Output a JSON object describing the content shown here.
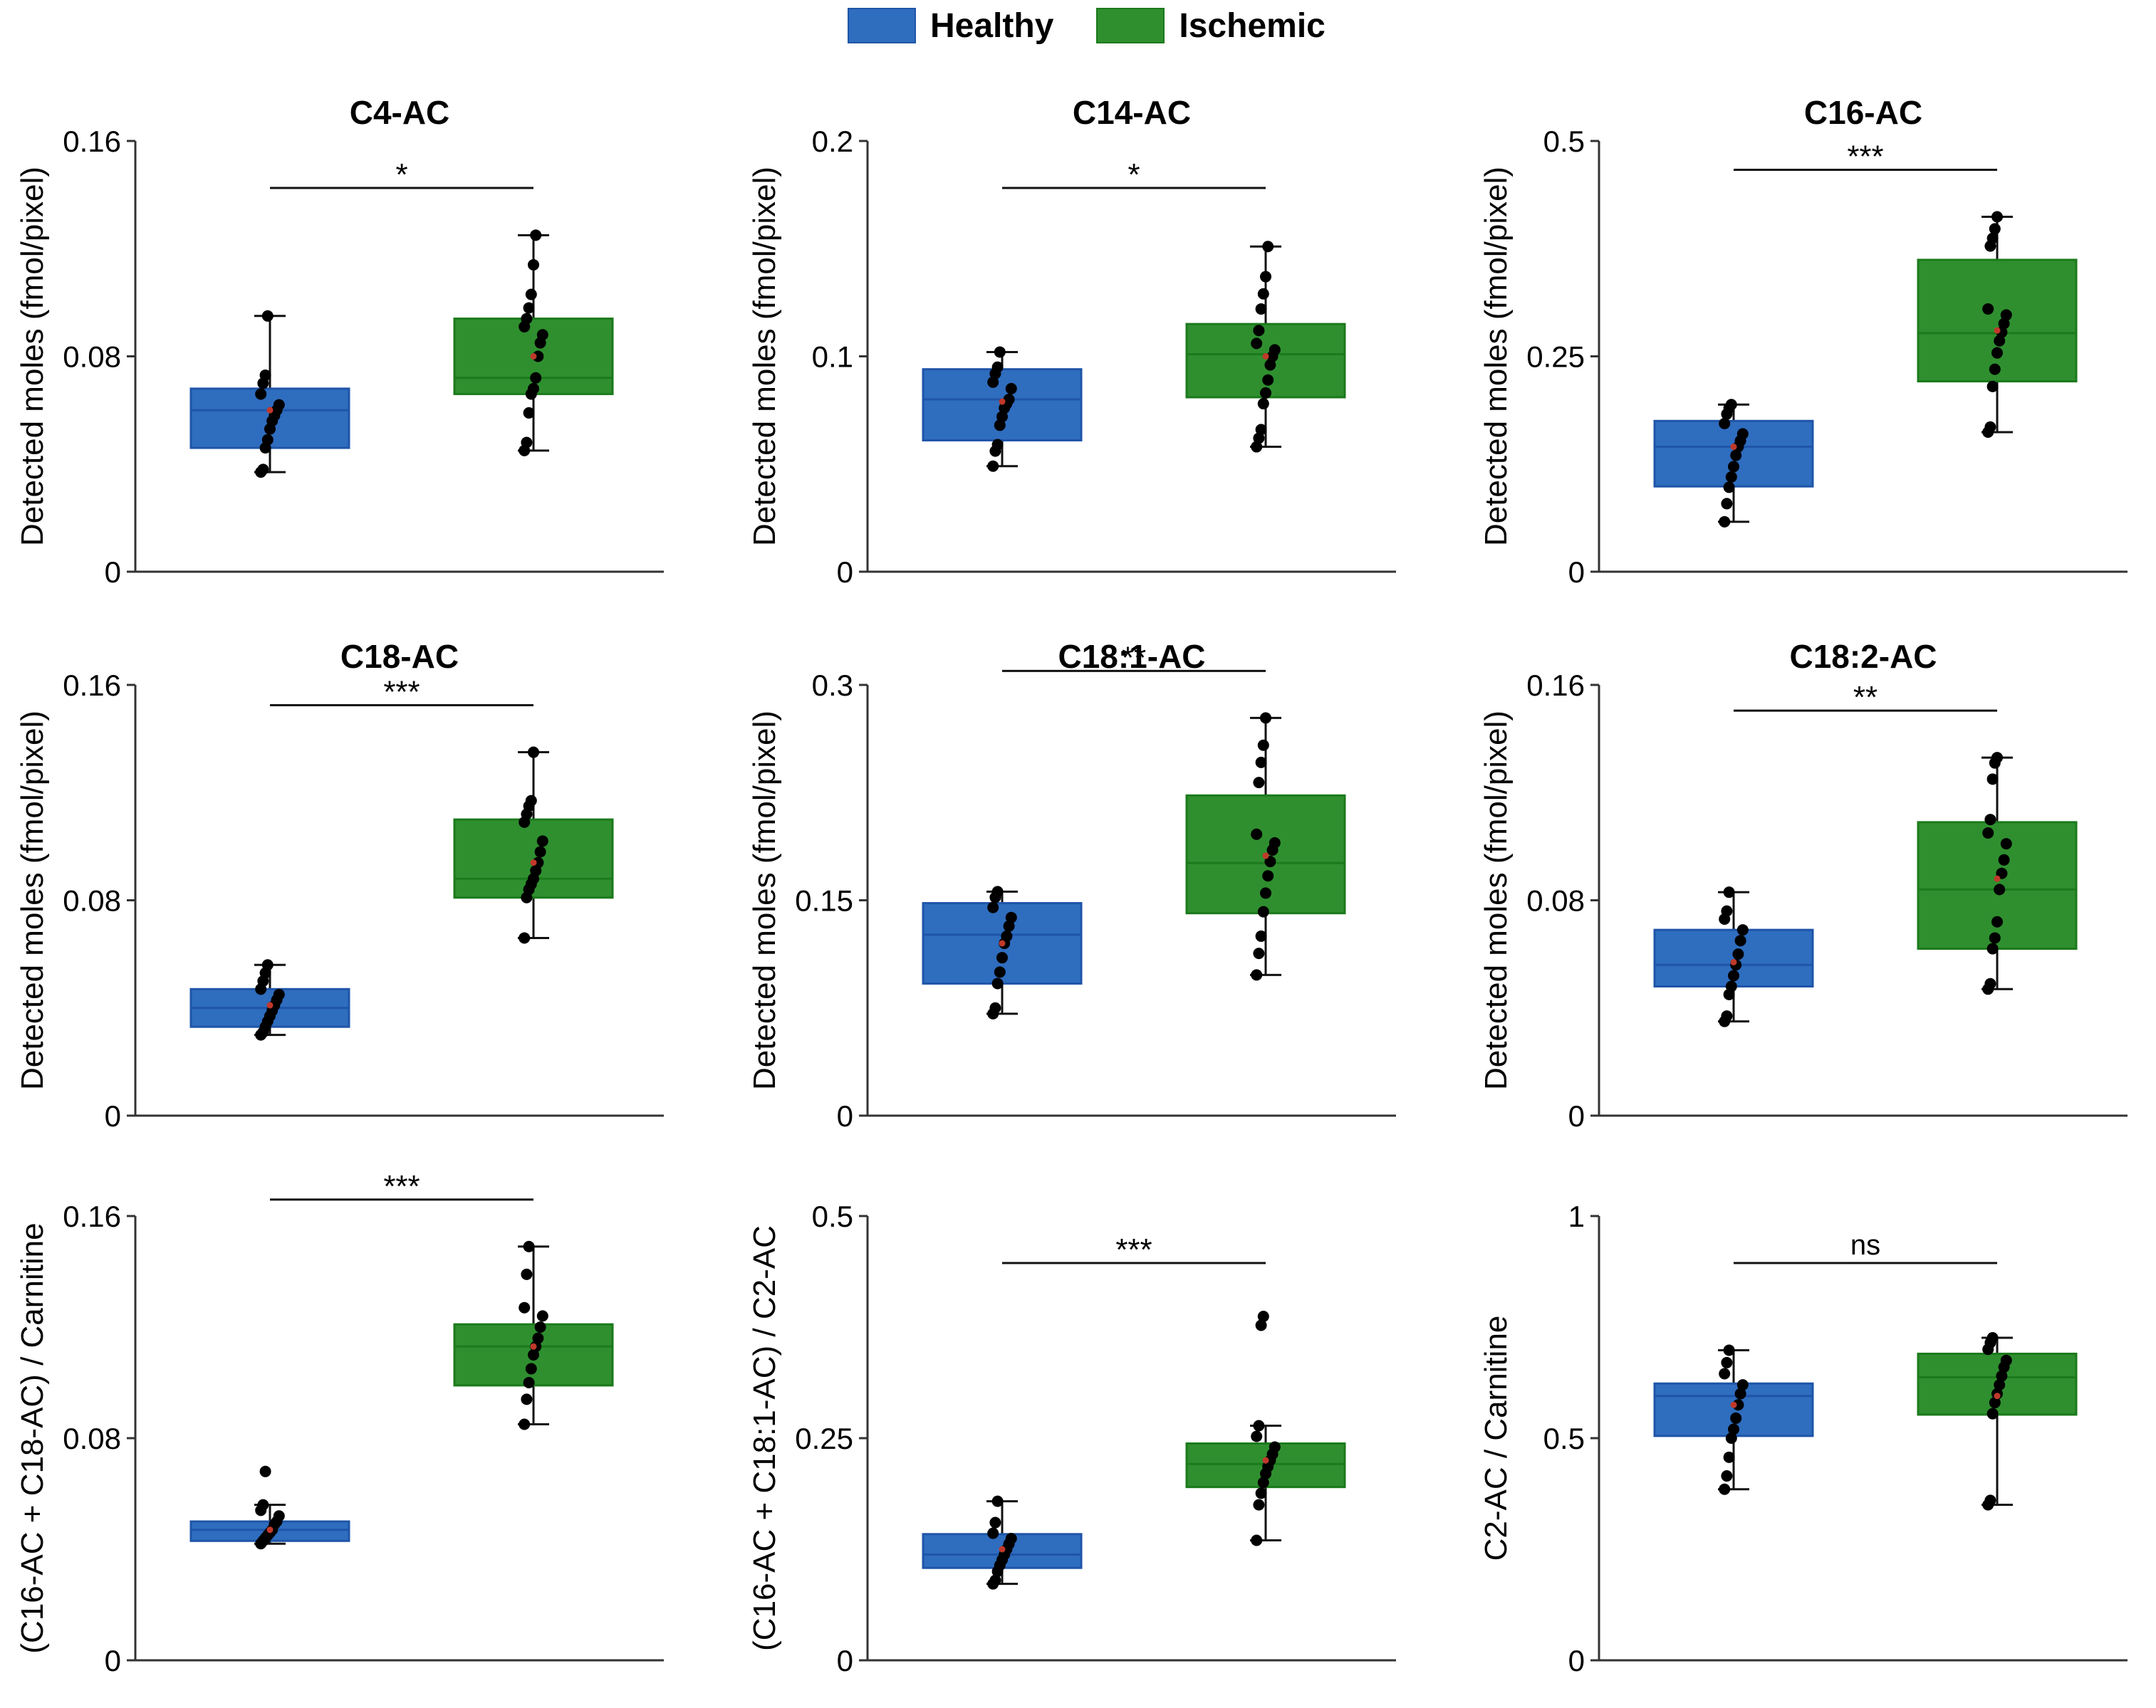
{
  "legend": {
    "healthy_label": "Healthy",
    "ischemic_label": "Ischemic",
    "healthy_fill": "#2F6DBF",
    "healthy_edge": "#1F55A8",
    "ischemic_fill": "#2F8F2F",
    "ischemic_edge": "#1B7A1B"
  },
  "chart_data": [
    {
      "type": "box",
      "title": "C4-AC",
      "ylabel": "Detected moles (fmol/pixel)",
      "ylim": [
        0,
        0.16
      ],
      "yticks": [
        0,
        0.08,
        0.16
      ],
      "ytick_labels": [
        "0",
        "0.08",
        "0.16"
      ],
      "significance": "*",
      "series": [
        {
          "name": "Healthy",
          "whisker_low": 0.037,
          "q1": 0.046,
          "median": 0.06,
          "q3": 0.068,
          "whisker_high": 0.095,
          "mean": 0.06,
          "points": [
            0.037,
            0.038,
            0.046,
            0.049,
            0.053,
            0.056,
            0.058,
            0.06,
            0.062,
            0.066,
            0.07,
            0.073,
            0.095
          ]
        },
        {
          "name": "Ischemic",
          "whisker_low": 0.045,
          "q1": 0.066,
          "median": 0.072,
          "q3": 0.094,
          "whisker_high": 0.125,
          "mean": 0.08,
          "points": [
            0.045,
            0.048,
            0.059,
            0.066,
            0.068,
            0.072,
            0.08,
            0.085,
            0.088,
            0.091,
            0.094,
            0.098,
            0.103,
            0.114,
            0.125
          ]
        }
      ]
    },
    {
      "type": "box",
      "title": "C14-AC",
      "ylabel": "Detected moles (fmol/pixel)",
      "ylim": [
        0,
        0.2
      ],
      "yticks": [
        0,
        0.1,
        0.2
      ],
      "ytick_labels": [
        "0",
        "0.1",
        "0.2"
      ],
      "significance": "*",
      "series": [
        {
          "name": "Healthy",
          "whisker_low": 0.049,
          "q1": 0.061,
          "median": 0.08,
          "q3": 0.094,
          "whisker_high": 0.102,
          "mean": 0.079,
          "points": [
            0.049,
            0.056,
            0.059,
            0.068,
            0.072,
            0.076,
            0.078,
            0.08,
            0.085,
            0.088,
            0.092,
            0.095,
            0.102
          ]
        },
        {
          "name": "Ischemic",
          "whisker_low": 0.058,
          "q1": 0.081,
          "median": 0.101,
          "q3": 0.115,
          "whisker_high": 0.151,
          "mean": 0.1,
          "points": [
            0.058,
            0.062,
            0.066,
            0.078,
            0.083,
            0.089,
            0.096,
            0.1,
            0.103,
            0.106,
            0.112,
            0.122,
            0.129,
            0.137,
            0.151
          ]
        }
      ]
    },
    {
      "type": "box",
      "title": "C16-AC",
      "ylabel": "Detected moles (fmol/pixel)",
      "ylim": [
        0,
        0.5
      ],
      "yticks": [
        0,
        0.25,
        0.5
      ],
      "ytick_labels": [
        "0",
        "0.25",
        "0.5"
      ],
      "significance": "***",
      "series": [
        {
          "name": "Healthy",
          "whisker_low": 0.058,
          "q1": 0.099,
          "median": 0.145,
          "q3": 0.175,
          "whisker_high": 0.194,
          "mean": 0.145,
          "points": [
            0.058,
            0.079,
            0.098,
            0.11,
            0.122,
            0.135,
            0.145,
            0.152,
            0.16,
            0.172,
            0.183,
            0.19,
            0.194
          ]
        },
        {
          "name": "Ischemic",
          "whisker_low": 0.162,
          "q1": 0.221,
          "median": 0.277,
          "q3": 0.362,
          "whisker_high": 0.412,
          "mean": 0.28,
          "points": [
            0.162,
            0.168,
            0.215,
            0.235,
            0.254,
            0.268,
            0.278,
            0.288,
            0.298,
            0.305,
            0.378,
            0.387,
            0.398,
            0.412
          ]
        }
      ]
    },
    {
      "type": "box",
      "title": "C18-AC",
      "ylabel": "Detected moles (fmol/pixel)",
      "ylim": [
        0,
        0.16
      ],
      "yticks": [
        0,
        0.08,
        0.16
      ],
      "ytick_labels": [
        "0",
        "0.08",
        "0.16"
      ],
      "significance": "***",
      "series": [
        {
          "name": "Healthy",
          "whisker_low": 0.03,
          "q1": 0.033,
          "median": 0.04,
          "q3": 0.047,
          "whisker_high": 0.056,
          "mean": 0.041,
          "points": [
            0.03,
            0.031,
            0.033,
            0.035,
            0.037,
            0.039,
            0.041,
            0.043,
            0.045,
            0.047,
            0.05,
            0.053,
            0.056
          ]
        },
        {
          "name": "Ischemic",
          "whisker_low": 0.066,
          "q1": 0.081,
          "median": 0.088,
          "q3": 0.11,
          "whisker_high": 0.135,
          "mean": 0.094,
          "points": [
            0.066,
            0.081,
            0.084,
            0.086,
            0.088,
            0.091,
            0.094,
            0.098,
            0.102,
            0.109,
            0.112,
            0.115,
            0.117,
            0.135
          ]
        }
      ]
    },
    {
      "type": "box",
      "title": "C18:1-AC",
      "ylabel": "Detected moles (fmol/pixel)",
      "ylim": [
        0,
        0.3
      ],
      "yticks": [
        0,
        0.15,
        0.3
      ],
      "ytick_labels": [
        "0",
        "0.15",
        "0.3"
      ],
      "significance": "**",
      "series": [
        {
          "name": "Healthy",
          "whisker_low": 0.071,
          "q1": 0.092,
          "median": 0.126,
          "q3": 0.148,
          "whisker_high": 0.156,
          "mean": 0.12,
          "points": [
            0.071,
            0.075,
            0.092,
            0.1,
            0.11,
            0.12,
            0.125,
            0.132,
            0.138,
            0.145,
            0.152,
            0.156
          ]
        },
        {
          "name": "Ischemic",
          "whisker_low": 0.098,
          "q1": 0.141,
          "median": 0.176,
          "q3": 0.223,
          "whisker_high": 0.277,
          "mean": 0.181,
          "points": [
            0.098,
            0.113,
            0.125,
            0.142,
            0.155,
            0.167,
            0.177,
            0.185,
            0.19,
            0.196,
            0.232,
            0.246,
            0.258,
            0.277
          ]
        }
      ]
    },
    {
      "type": "box",
      "title": "C18:2-AC",
      "ylabel": "Detected moles (fmol/pixel)",
      "ylim": [
        0,
        0.16
      ],
      "yticks": [
        0,
        0.08,
        0.16
      ],
      "ytick_labels": [
        "0",
        "0.08",
        "0.16"
      ],
      "significance": "**",
      "series": [
        {
          "name": "Healthy",
          "whisker_low": 0.035,
          "q1": 0.048,
          "median": 0.056,
          "q3": 0.069,
          "whisker_high": 0.083,
          "mean": 0.057,
          "points": [
            0.035,
            0.037,
            0.045,
            0.048,
            0.052,
            0.056,
            0.06,
            0.065,
            0.069,
            0.073,
            0.076,
            0.083
          ]
        },
        {
          "name": "Ischemic",
          "whisker_low": 0.047,
          "q1": 0.062,
          "median": 0.084,
          "q3": 0.109,
          "whisker_high": 0.133,
          "mean": 0.088,
          "points": [
            0.047,
            0.049,
            0.062,
            0.066,
            0.072,
            0.084,
            0.09,
            0.095,
            0.101,
            0.105,
            0.11,
            0.125,
            0.131,
            0.133
          ]
        }
      ]
    },
    {
      "type": "box",
      "title": "",
      "ylabel": "(C16-AC + C18-AC) / Carnitine",
      "ylim": [
        0,
        0.16
      ],
      "yticks": [
        0,
        0.08,
        0.16
      ],
      "ytick_labels": [
        "0",
        "0.08",
        "0.16"
      ],
      "significance": "***",
      "series": [
        {
          "name": "Healthy",
          "whisker_low": 0.042,
          "q1": 0.043,
          "median": 0.047,
          "q3": 0.05,
          "whisker_high": 0.056,
          "mean": 0.047,
          "points": [
            0.042,
            0.043,
            0.044,
            0.045,
            0.046,
            0.047,
            0.049,
            0.05,
            0.052,
            0.054,
            0.056,
            0.068
          ]
        },
        {
          "name": "Ischemic",
          "whisker_low": 0.085,
          "q1": 0.099,
          "median": 0.113,
          "q3": 0.121,
          "whisker_high": 0.149,
          "mean": 0.113,
          "points": [
            0.085,
            0.094,
            0.1,
            0.105,
            0.11,
            0.113,
            0.116,
            0.12,
            0.124,
            0.127,
            0.139,
            0.149
          ]
        }
      ]
    },
    {
      "type": "box",
      "title": "",
      "ylabel": "(C16-AC + C18:1-AC) / C2-AC",
      "ylim": [
        0,
        0.5
      ],
      "yticks": [
        0,
        0.25,
        0.5
      ],
      "ytick_labels": [
        "0",
        "0.25",
        "0.5"
      ],
      "significance": "***",
      "series": [
        {
          "name": "Healthy",
          "whisker_low": 0.086,
          "q1": 0.104,
          "median": 0.119,
          "q3": 0.142,
          "whisker_high": 0.179,
          "mean": 0.125,
          "points": [
            0.086,
            0.09,
            0.1,
            0.107,
            0.113,
            0.119,
            0.125,
            0.131,
            0.137,
            0.143,
            0.155,
            0.179
          ]
        },
        {
          "name": "Ischemic",
          "whisker_low": 0.135,
          "q1": 0.195,
          "median": 0.221,
          "q3": 0.244,
          "whisker_high": 0.264,
          "mean": 0.225,
          "points": [
            0.135,
            0.175,
            0.188,
            0.2,
            0.21,
            0.218,
            0.225,
            0.232,
            0.24,
            0.252,
            0.264,
            0.377,
            0.387
          ]
        }
      ]
    },
    {
      "type": "box",
      "title": "",
      "ylabel": "C2-AC / Carnitine",
      "ylim": [
        0,
        1
      ],
      "yticks": [
        0,
        0.5,
        1
      ],
      "ytick_labels": [
        "0",
        "0.5",
        "1"
      ],
      "significance": "ns",
      "series": [
        {
          "name": "Healthy",
          "whisker_low": 0.385,
          "q1": 0.505,
          "median": 0.595,
          "q3": 0.623,
          "whisker_high": 0.698,
          "mean": 0.575,
          "points": [
            0.385,
            0.415,
            0.457,
            0.5,
            0.52,
            0.545,
            0.575,
            0.6,
            0.62,
            0.645,
            0.67,
            0.698
          ]
        },
        {
          "name": "Ischemic",
          "whisker_low": 0.35,
          "q1": 0.553,
          "median": 0.637,
          "q3": 0.69,
          "whisker_high": 0.726,
          "mean": 0.595,
          "points": [
            0.35,
            0.36,
            0.555,
            0.58,
            0.6,
            0.62,
            0.64,
            0.66,
            0.675,
            0.7,
            0.715,
            0.726
          ]
        }
      ]
    }
  ]
}
